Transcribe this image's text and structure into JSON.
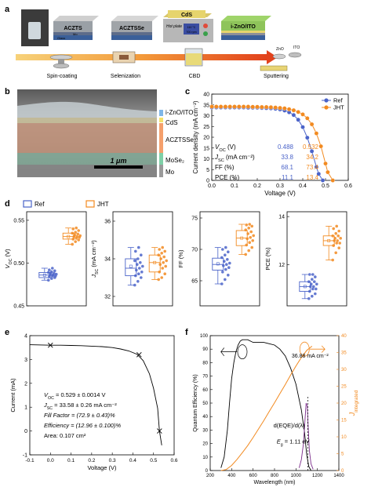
{
  "panel_labels": {
    "a": "a",
    "b": "b",
    "c": "c",
    "d": "d",
    "e": "e",
    "f": "f"
  },
  "panel_a": {
    "layers": [
      "ACZTS",
      "ACZTSSe",
      "CdS",
      "i-ZnO/ITO"
    ],
    "substrate": {
      "glass": "Glass",
      "mo": "Mo"
    },
    "hot_plate": {
      "label": "Hot plate",
      "temp": "110 °C",
      "rpm": "700 rpm"
    },
    "targets": {
      "zno": "ZnO",
      "ito": "ITO"
    },
    "steps": [
      "Spin-coating",
      "Selenization",
      "CBD",
      "Sputtering"
    ]
  },
  "panel_b": {
    "layers": [
      "i-ZnO/ITO",
      "CdS",
      "ACZTSSe",
      "MoSe₂",
      "Mo"
    ],
    "scale_bar": "1 μm",
    "layer_colors": [
      "#7fb7e8",
      "#f5e26a",
      "#f5a06c",
      "#7fd0a8",
      "#9a9a9a"
    ]
  },
  "colors": {
    "ref": "#4a63c9",
    "jht": "#f28a20"
  },
  "chart_data": [
    {
      "id": "c",
      "type": "line",
      "xlabel": "Voltage (V)",
      "ylabel": "Current density (mA cm⁻²)",
      "xlim": [
        0.0,
        0.6
      ],
      "ylim": [
        0,
        40
      ],
      "xticks": [
        "0.0",
        "0.1",
        "0.2",
        "0.3",
        "0.4",
        "0.5",
        "0.6"
      ],
      "yticks": [
        "0",
        "5",
        "10",
        "15",
        "20",
        "25",
        "30",
        "35",
        "40"
      ],
      "legend": [
        "Ref",
        "JHT"
      ],
      "series": [
        {
          "name": "Ref",
          "x": [
            0,
            0.02,
            0.04,
            0.06,
            0.08,
            0.1,
            0.12,
            0.14,
            0.16,
            0.18,
            0.2,
            0.22,
            0.24,
            0.26,
            0.28,
            0.3,
            0.32,
            0.34,
            0.36,
            0.38,
            0.4,
            0.42,
            0.44,
            0.46,
            0.47,
            0.488
          ],
          "y": [
            33.8,
            33.8,
            33.8,
            33.8,
            33.8,
            33.8,
            33.8,
            33.8,
            33.7,
            33.7,
            33.7,
            33.6,
            33.5,
            33.4,
            33.2,
            32.9,
            32.4,
            31.6,
            30.3,
            28.1,
            24.7,
            19.8,
            13.5,
            6.2,
            3.0,
            0
          ]
        },
        {
          "name": "JHT",
          "x": [
            0,
            0.02,
            0.04,
            0.06,
            0.08,
            0.1,
            0.12,
            0.14,
            0.16,
            0.18,
            0.2,
            0.22,
            0.24,
            0.26,
            0.28,
            0.3,
            0.32,
            0.34,
            0.36,
            0.38,
            0.4,
            0.42,
            0.44,
            0.46,
            0.48,
            0.5,
            0.51,
            0.532
          ],
          "y": [
            34.2,
            34.2,
            34.2,
            34.2,
            34.2,
            34.2,
            34.2,
            34.2,
            34.2,
            34.1,
            34.1,
            34.0,
            34.0,
            33.9,
            33.8,
            33.6,
            33.4,
            33.0,
            32.5,
            31.7,
            30.6,
            28.8,
            26.0,
            21.8,
            15.8,
            7.8,
            3.8,
            0
          ]
        }
      ],
      "table": {
        "headers": [
          "",
          "Ref",
          "JHT"
        ],
        "rows": [
          [
            "V_OC (V)",
            "0.488",
            "0.532"
          ],
          [
            "J_SC (mA cm⁻²)",
            "33.8",
            "34.2"
          ],
          [
            "FF (%)",
            "68.1",
            "73.4"
          ],
          [
            "PCE (%)",
            "11.1",
            "13.4"
          ]
        ]
      }
    },
    {
      "id": "d",
      "type": "box",
      "legend": [
        "Ref",
        "JHT"
      ],
      "subplots": [
        {
          "ylabel": "V_OC (V)",
          "ylim": [
            0.45,
            0.56
          ],
          "yticks": [
            "0.45",
            "0.50",
            "0.55"
          ],
          "ref": {
            "min": 0.48,
            "q1": 0.483,
            "median": 0.486,
            "q3": 0.489,
            "max": 0.494,
            "mean": 0.486,
            "points": [
              0.48,
              0.482,
              0.483,
              0.484,
              0.485,
              0.485,
              0.486,
              0.486,
              0.487,
              0.488,
              0.488,
              0.489,
              0.49,
              0.491,
              0.492,
              0.494
            ]
          },
          "jht": {
            "min": 0.522,
            "q1": 0.528,
            "median": 0.531,
            "q3": 0.535,
            "max": 0.541,
            "mean": 0.531,
            "points": [
              0.522,
              0.525,
              0.527,
              0.528,
              0.529,
              0.53,
              0.531,
              0.531,
              0.532,
              0.533,
              0.534,
              0.535,
              0.536,
              0.538,
              0.54,
              0.541
            ]
          }
        },
        {
          "ylabel": "J_SC (mA cm⁻²)",
          "ylim": [
            31.5,
            36.5
          ],
          "yticks": [
            "32",
            "34",
            "36"
          ],
          "ref": {
            "min": 32.6,
            "q1": 33.1,
            "median": 33.5,
            "q3": 34.0,
            "max": 34.6,
            "mean": 33.6,
            "points": [
              32.6,
              32.8,
              33.0,
              33.1,
              33.2,
              33.3,
              33.4,
              33.5,
              33.6,
              33.7,
              33.8,
              33.9,
              34.0,
              34.2,
              34.4,
              34.6
            ]
          },
          "jht": {
            "min": 32.9,
            "q1": 33.3,
            "median": 33.8,
            "q3": 34.2,
            "max": 34.6,
            "mean": 33.8,
            "points": [
              32.9,
              33.0,
              33.2,
              33.3,
              33.5,
              33.6,
              33.7,
              33.8,
              33.9,
              34.0,
              34.1,
              34.2,
              34.3,
              34.4,
              34.5,
              34.6
            ]
          }
        },
        {
          "ylabel": "FF (%)",
          "ylim": [
            61,
            76
          ],
          "yticks": [
            "65",
            "70",
            "75"
          ],
          "ref": {
            "min": 64.5,
            "q1": 66.7,
            "median": 67.6,
            "q3": 68.6,
            "max": 70.3,
            "mean": 67.7,
            "points": [
              64.5,
              65.2,
              65.9,
              66.4,
              66.8,
              67.1,
              67.4,
              67.6,
              67.8,
              68.1,
              68.4,
              68.7,
              69.1,
              69.6,
              70.0,
              70.3
            ]
          },
          "jht": {
            "min": 69.2,
            "q1": 70.6,
            "median": 71.8,
            "q3": 73.0,
            "max": 74.0,
            "mean": 71.8,
            "points": [
              69.2,
              69.8,
              70.3,
              70.7,
              71.1,
              71.4,
              71.7,
              71.9,
              72.2,
              72.5,
              72.8,
              73.1,
              73.4,
              73.7,
              73.9,
              74.0
            ]
          }
        },
        {
          "ylabel": "PCE (%)",
          "ylim": [
            10.3,
            14.2
          ],
          "yticks": [
            "12",
            "14"
          ],
          "ref": {
            "min": 10.6,
            "q1": 10.9,
            "median": 11.1,
            "q3": 11.3,
            "max": 11.6,
            "mean": 11.1,
            "points": [
              10.6,
              10.7,
              10.8,
              10.9,
              11.0,
              11.0,
              11.1,
              11.1,
              11.2,
              11.2,
              11.3,
              11.3,
              11.4,
              11.5,
              11.6,
              11.6
            ]
          },
          "jht": {
            "min": 12.2,
            "q1": 12.8,
            "median": 13.0,
            "q3": 13.2,
            "max": 13.6,
            "mean": 13.0,
            "points": [
              12.2,
              12.5,
              12.7,
              12.8,
              12.9,
              12.9,
              13.0,
              13.0,
              13.1,
              13.1,
              13.2,
              13.2,
              13.3,
              13.4,
              13.5,
              13.6
            ]
          }
        }
      ]
    },
    {
      "id": "e",
      "type": "line",
      "xlabel": "Voltage (V)",
      "ylabel": "Current (mA)",
      "xlim": [
        -0.1,
        0.6
      ],
      "ylim": [
        -1,
        4
      ],
      "xticks": [
        "-0.1",
        "0.0",
        "0.1",
        "0.2",
        "0.3",
        "0.4",
        "0.5",
        "0.6"
      ],
      "yticks": [
        "-1",
        "0",
        "1",
        "2",
        "3",
        "4"
      ],
      "series": [
        {
          "x": [
            -0.1,
            0.0,
            0.05,
            0.1,
            0.15,
            0.2,
            0.25,
            0.3,
            0.34,
            0.38,
            0.42,
            0.45,
            0.48,
            0.5,
            0.52,
            0.529,
            0.54
          ],
          "y": [
            3.62,
            3.6,
            3.6,
            3.59,
            3.58,
            3.56,
            3.54,
            3.5,
            3.44,
            3.36,
            3.22,
            2.95,
            2.4,
            1.8,
            0.95,
            0.0,
            -0.6
          ]
        }
      ],
      "markers": [
        {
          "x": 0.0,
          "y": 3.6
        },
        {
          "x": 0.43,
          "y": 3.2
        },
        {
          "x": 0.529,
          "y": 0.0
        }
      ],
      "annotations": [
        "V_OC = 0.529 ± 0.0014 V",
        "J_SC = 33.58 ± 0.26 mA cm⁻²",
        "Fill Factor = (72.9 ± 0.43)%",
        "Efficiency = (12.96 ± 0.100)%",
        "Area: 0.107 cm²"
      ]
    },
    {
      "id": "f",
      "type": "line",
      "xlabel": "Wavelength (nm)",
      "ylabel": "Quantum Efficiency (%)",
      "ylabel_right": "J_integrated",
      "xlim": [
        200,
        1400
      ],
      "ylim": [
        0,
        100
      ],
      "ylim_right": [
        0,
        40
      ],
      "xticks": [
        "200",
        "400",
        "600",
        "800",
        "1000",
        "1200",
        "1400"
      ],
      "yticks": [
        "0",
        "10",
        "20",
        "30",
        "40",
        "50",
        "60",
        "70",
        "80",
        "90",
        "100"
      ],
      "yticks_right": [
        "0",
        "5",
        "10",
        "15",
        "20",
        "25",
        "30",
        "35",
        "40"
      ],
      "series": [
        {
          "name": "EQE",
          "x": [
            300,
            330,
            360,
            380,
            400,
            420,
            440,
            460,
            480,
            500,
            550,
            600,
            650,
            700,
            750,
            800,
            850,
            900,
            950,
            1000,
            1050,
            1080,
            1100,
            1120,
            1140
          ],
          "y": [
            2,
            10,
            30,
            50,
            68,
            80,
            88,
            93,
            96,
            97,
            97,
            95,
            95,
            95,
            94,
            93,
            90,
            85,
            76,
            64,
            45,
            28,
            12,
            3,
            0
          ]
        },
        {
          "name": "J_integrated",
          "x": [
            300,
            350,
            400,
            450,
            500,
            550,
            600,
            650,
            700,
            750,
            800,
            850,
            900,
            950,
            1000,
            1050,
            1100,
            1150
          ],
          "y": [
            0,
            0.3,
            1.5,
            3.3,
            5.3,
            7.4,
            9.8,
            12.3,
            14.8,
            17.5,
            20.1,
            22.8,
            25.5,
            28.3,
            31.0,
            33.5,
            35.6,
            36.88
          ]
        },
        {
          "name": "d(EQE)/d(λ)",
          "x": [
            1030,
            1050,
            1070,
            1085,
            1095,
            1105,
            1115,
            1125,
            1140,
            1160
          ],
          "y": [
            2,
            8,
            20,
            38,
            50,
            48,
            30,
            15,
            5,
            1
          ]
        }
      ],
      "annotations": {
        "jint": "36.88 mA cm⁻²",
        "deriv": "d(EQE)/d(λ)",
        "eg": "E_g = 1.11 eV"
      }
    }
  ]
}
